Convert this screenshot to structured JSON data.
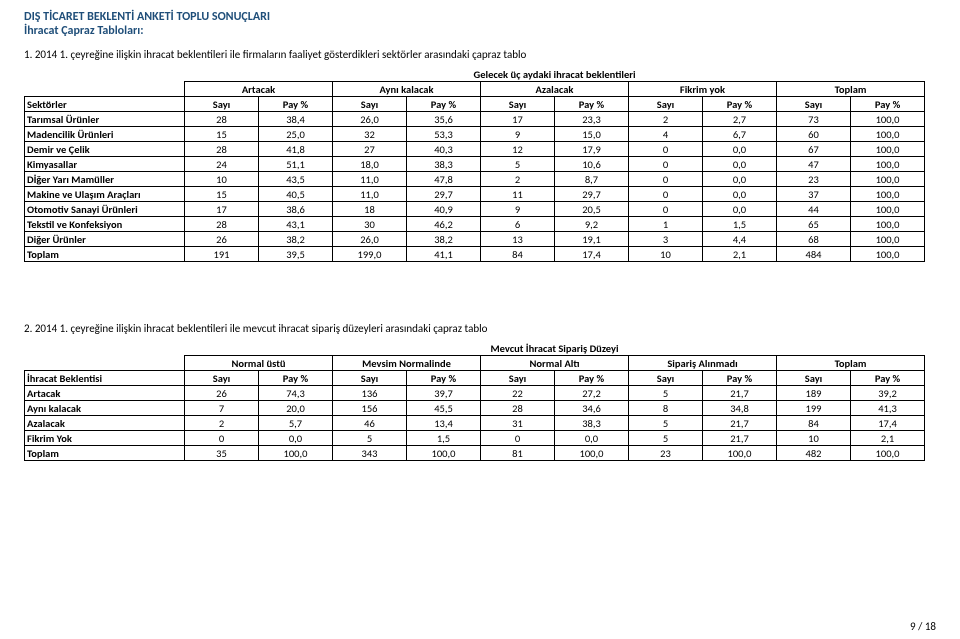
{
  "header": {
    "title": "DIŞ TİCARET BEKLENTİ ANKETİ TOPLU SONUÇLARI",
    "subtitle": "İhracat Çapraz Tabloları:"
  },
  "table1": {
    "caption": "1.  2014 1. çeyreğine ilişkin ihracat beklentileri ile firmaların faaliyet gösterdikleri sektörler arasındaki çapraz tablo",
    "superheader": "Gelecek üç aydaki ihracat beklentileri",
    "groups": [
      "Artacak",
      "Aynı kalacak",
      "Azalacak",
      "Fikrim yok",
      "Toplam"
    ],
    "row_header": "Sektörler",
    "col_pair": [
      "Sayı",
      "Pay %"
    ],
    "rows": [
      {
        "label": "Tarımsal Ürünler",
        "vals": [
          "28",
          "38,4",
          "26,0",
          "35,6",
          "17",
          "23,3",
          "2",
          "2,7",
          "73",
          "100,0"
        ]
      },
      {
        "label": "Madencilik Ürünleri",
        "vals": [
          "15",
          "25,0",
          "32",
          "53,3",
          "9",
          "15,0",
          "4",
          "6,7",
          "60",
          "100,0"
        ]
      },
      {
        "label": "Demir ve Çelik",
        "vals": [
          "28",
          "41,8",
          "27",
          "40,3",
          "12",
          "17,9",
          "0",
          "0,0",
          "67",
          "100,0"
        ]
      },
      {
        "label": "Kimyasallar",
        "vals": [
          "24",
          "51,1",
          "18,0",
          "38,3",
          "5",
          "10,6",
          "0",
          "0,0",
          "47",
          "100,0"
        ]
      },
      {
        "label": "Dİğer Yarı Mamüller",
        "vals": [
          "10",
          "43,5",
          "11,0",
          "47,8",
          "2",
          "8,7",
          "0",
          "0,0",
          "23",
          "100,0"
        ]
      },
      {
        "label": "Makine ve Ulaşım Araçları",
        "vals": [
          "15",
          "40,5",
          "11,0",
          "29,7",
          "11",
          "29,7",
          "0",
          "0,0",
          "37",
          "100,0"
        ]
      },
      {
        "label": "Otomotiv Sanayi Ürünleri",
        "vals": [
          "17",
          "38,6",
          "18",
          "40,9",
          "9",
          "20,5",
          "0",
          "0,0",
          "44",
          "100,0"
        ]
      },
      {
        "label": "Tekstil ve Konfeksiyon",
        "vals": [
          "28",
          "43,1",
          "30",
          "46,2",
          "6",
          "9,2",
          "1",
          "1,5",
          "65",
          "100,0"
        ]
      },
      {
        "label": "Diğer Ürünler",
        "vals": [
          "26",
          "38,2",
          "26,0",
          "38,2",
          "13",
          "19,1",
          "3",
          "4,4",
          "68",
          "100,0"
        ]
      },
      {
        "label": "Toplam",
        "vals": [
          "191",
          "39,5",
          "199,0",
          "41,1",
          "84",
          "17,4",
          "10",
          "2,1",
          "484",
          "100,0"
        ]
      }
    ]
  },
  "table2": {
    "caption": "2.  2014 1. çeyreğine ilişkin ihracat beklentileri ile mevcut ihracat sipariş düzeyleri arasındaki çapraz tablo",
    "superheader": "Mevcut İhracat Sipariş Düzeyi",
    "groups": [
      "Normal üstü",
      "Mevsim Normalinde",
      "Normal Altı",
      "Sipariş Alınmadı",
      "Toplam"
    ],
    "row_header": "İhracat Beklentisi",
    "col_pair": [
      "Sayı",
      "Pay %"
    ],
    "rows": [
      {
        "label": "Artacak",
        "vals": [
          "26",
          "74,3",
          "136",
          "39,7",
          "22",
          "27,2",
          "5",
          "21,7",
          "189",
          "39,2"
        ]
      },
      {
        "label": "Aynı kalacak",
        "vals": [
          "7",
          "20,0",
          "156",
          "45,5",
          "28",
          "34,6",
          "8",
          "34,8",
          "199",
          "41,3"
        ]
      },
      {
        "label": "Azalacak",
        "vals": [
          "2",
          "5,7",
          "46",
          "13,4",
          "31",
          "38,3",
          "5",
          "21,7",
          "84",
          "17,4"
        ]
      },
      {
        "label": "Fikrim Yok",
        "vals": [
          "0",
          "0,0",
          "5",
          "1,5",
          "0",
          "0,0",
          "5",
          "21,7",
          "10",
          "2,1"
        ]
      },
      {
        "label": "Toplam",
        "vals": [
          "35",
          "100,0",
          "343",
          "100,0",
          "81",
          "100,0",
          "23",
          "100,0",
          "482",
          "100,0"
        ]
      }
    ]
  },
  "footer": {
    "text": "9 / 18"
  }
}
